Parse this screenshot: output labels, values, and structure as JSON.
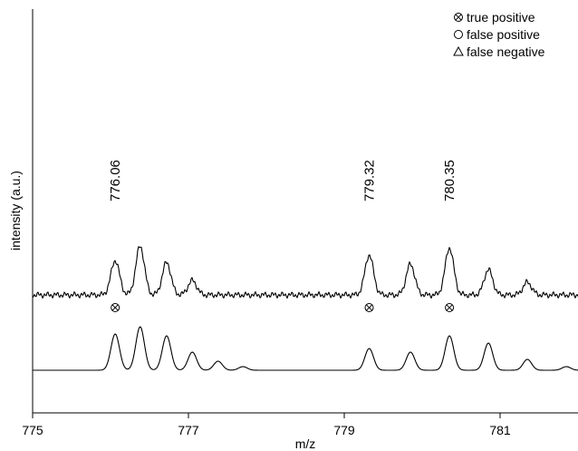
{
  "chart_data": {
    "type": "line",
    "title": "",
    "xlabel": "m/z",
    "ylabel": "intensity (a.u.)",
    "xlim": [
      775,
      782
    ],
    "xticks": [
      775,
      777,
      779,
      781
    ],
    "xtick_labels": [
      "775",
      "777",
      "779",
      "781"
    ],
    "grid": false,
    "legend": {
      "placement": "top-right",
      "entries": [
        {
          "symbol": "circle-x",
          "label": "true positive"
        },
        {
          "symbol": "circle",
          "label": "false positive"
        },
        {
          "symbol": "triangle",
          "label": "false negative"
        }
      ]
    },
    "peak_annotations": [
      {
        "mz": 776.06,
        "label": "776.06"
      },
      {
        "mz": 779.32,
        "label": "779.32"
      },
      {
        "mz": 780.35,
        "label": "780.35"
      }
    ],
    "markers": [
      {
        "mz": 776.06,
        "type": "true positive"
      },
      {
        "mz": 779.32,
        "type": "true positive"
      },
      {
        "mz": 780.35,
        "type": "true positive"
      }
    ],
    "series": [
      {
        "peaks": [
          {
            "mz": 776.06,
            "height": 0.95
          },
          {
            "mz": 776.38,
            "height": 1.35
          },
          {
            "mz": 776.72,
            "height": 0.9
          },
          {
            "mz": 777.05,
            "height": 0.4
          },
          {
            "mz": 779.32,
            "height": 1.1
          },
          {
            "mz": 779.85,
            "height": 0.85
          },
          {
            "mz": 780.35,
            "height": 1.3
          },
          {
            "mz": 780.85,
            "height": 0.7
          },
          {
            "mz": 781.35,
            "height": 0.35
          }
        ]
      },
      {
        "peaks": [
          {
            "mz": 776.06,
            "height": 1.0
          },
          {
            "mz": 776.38,
            "height": 1.2
          },
          {
            "mz": 776.72,
            "height": 0.95
          },
          {
            "mz": 777.05,
            "height": 0.5
          },
          {
            "mz": 777.38,
            "height": 0.25
          },
          {
            "mz": 777.7,
            "height": 0.1
          },
          {
            "mz": 779.32,
            "height": 0.6
          },
          {
            "mz": 779.85,
            "height": 0.5
          },
          {
            "mz": 780.35,
            "height": 0.95
          },
          {
            "mz": 780.85,
            "height": 0.75
          },
          {
            "mz": 781.35,
            "height": 0.3
          },
          {
            "mz": 781.85,
            "height": 0.1
          }
        ]
      }
    ]
  }
}
